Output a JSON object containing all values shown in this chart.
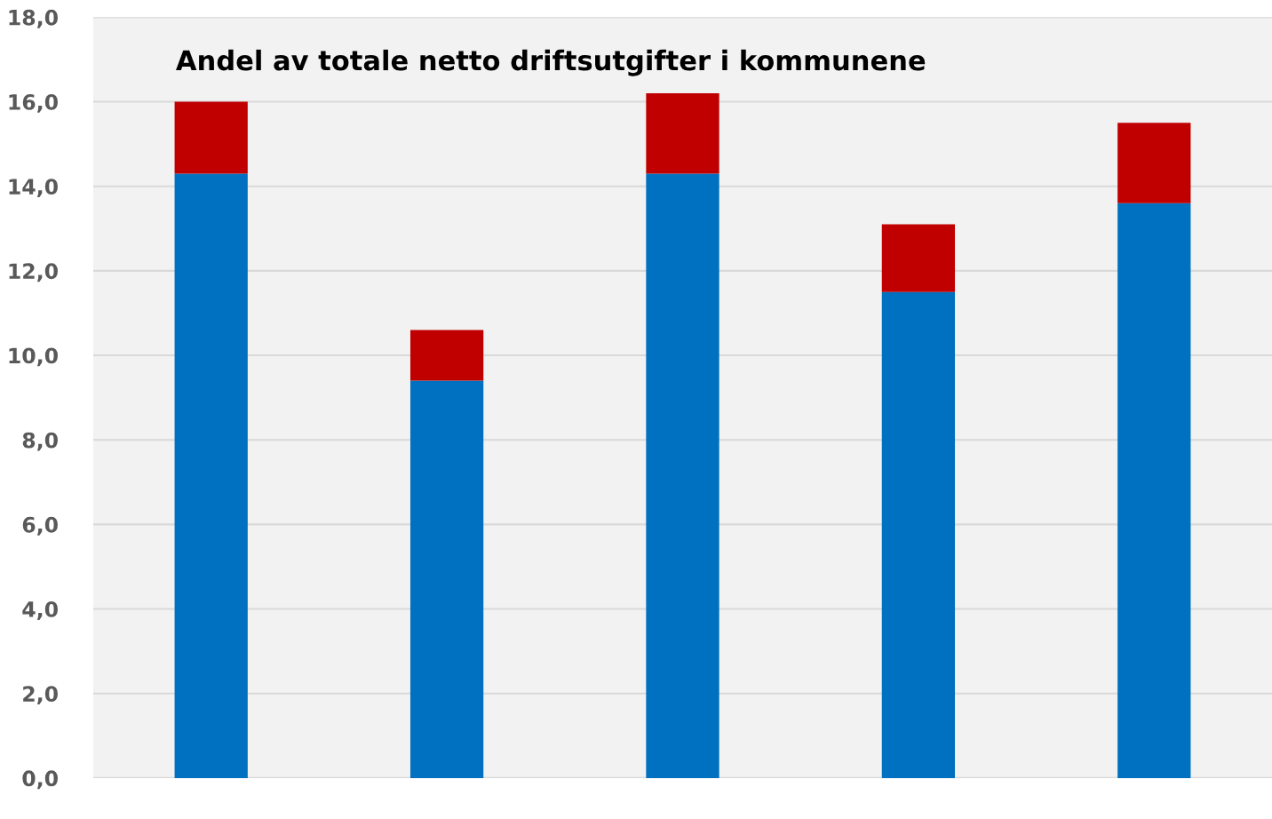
{
  "chart_data": {
    "type": "bar",
    "title": "Andel av totale netto driftsutgifter i kommunene",
    "categories": [
      null,
      null,
      null,
      null,
      null
    ],
    "stacked": true,
    "series": [
      {
        "color": "#0070c0",
        "values": [
          14.3,
          9.4,
          14.3,
          11.5,
          13.6
        ]
      },
      {
        "color": "#c00000",
        "values": [
          1.7,
          1.2,
          1.9,
          1.6,
          1.9
        ]
      }
    ],
    "ylim": [
      0,
      18
    ],
    "yticks": [
      {
        "value": 0,
        "label": "0,0"
      },
      {
        "value": 2,
        "label": "2,0"
      },
      {
        "value": 4,
        "label": "4,0"
      },
      {
        "value": 6,
        "label": "6,0"
      },
      {
        "value": 8,
        "label": "8,0"
      },
      {
        "value": 10,
        "label": "10,0"
      },
      {
        "value": 12,
        "label": "12,0"
      },
      {
        "value": 14,
        "label": "14,0"
      },
      {
        "value": 16,
        "label": "16,0"
      },
      {
        "value": 18,
        "label": "18,0"
      }
    ],
    "grid": "y",
    "legend": false
  }
}
